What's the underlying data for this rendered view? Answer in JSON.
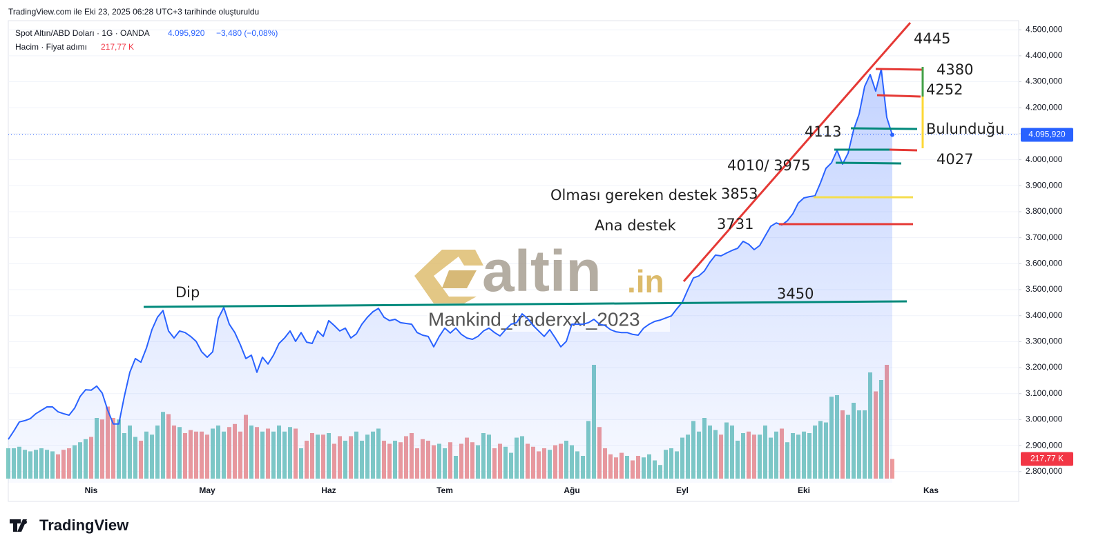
{
  "header": {
    "created": "TradingView.com ile Eki 23, 2025 06:28 UTC+3 tarihinde oluşturuldu"
  },
  "chart_data": {
    "type": "line",
    "categories": [
      null,
      null,
      null,
      null,
      null,
      null,
      null,
      null,
      null,
      null,
      null,
      null,
      null,
      null,
      null,
      "Nis",
      null,
      null,
      null,
      null,
      null,
      null,
      null,
      null,
      null,
      null,
      null,
      null,
      null,
      null,
      null,
      null,
      null,
      null,
      null,
      null,
      "May",
      null,
      null,
      null,
      null,
      null,
      null,
      null,
      null,
      null,
      null,
      null,
      null,
      null,
      null,
      null,
      null,
      null,
      null,
      null,
      null,
      null,
      "Haz",
      null,
      null,
      null,
      null,
      null,
      null,
      null,
      null,
      null,
      null,
      null,
      null,
      null,
      null,
      null,
      null,
      null,
      null,
      null,
      null,
      "Tem",
      null,
      null,
      null,
      null,
      null,
      null,
      null,
      null,
      null,
      null,
      null,
      null,
      null,
      null,
      null,
      null,
      null,
      null,
      null,
      null,
      null,
      null,
      "Ağu",
      null,
      null,
      null,
      null,
      null,
      null,
      null,
      null,
      null,
      null,
      null,
      null,
      null,
      null,
      null,
      null,
      null,
      null,
      null,
      "Eyl",
      null,
      null,
      null,
      null,
      null,
      null,
      null,
      null,
      null,
      null,
      null,
      null,
      null,
      null,
      null,
      null,
      null,
      null,
      null,
      null,
      null,
      "Eki",
      null,
      null,
      null,
      null,
      null,
      null,
      null,
      null,
      null,
      null,
      null,
      null,
      null,
      null,
      null,
      null,
      null,
      null,
      null,
      null,
      null,
      null,
      "Kas"
    ],
    "series": [
      {
        "name": "Spot Altın/ABD Doları · 1G · OANDA",
        "color": "#2962ff",
        "values": [
          2924,
          2956,
          2991,
          2996,
          3004,
          3023,
          3036,
          3049,
          3049,
          3030,
          3023,
          3017,
          3044,
          3089,
          3115,
          3113,
          3129,
          3102,
          3036,
          2983,
          2983,
          3089,
          3182,
          3235,
          3221,
          3275,
          3346,
          3394,
          3420,
          3341,
          3314,
          3341,
          3335,
          3320,
          3301,
          3261,
          3240,
          3261,
          3389,
          3431,
          3367,
          3335,
          3288,
          3235,
          3248,
          3182,
          3240,
          3214,
          3248,
          3293,
          3314,
          3341,
          3301,
          3335,
          3298,
          3293,
          3341,
          3320,
          3381,
          3362,
          3341,
          3352,
          3314,
          3330,
          3367,
          3394,
          3415,
          3428,
          3394,
          3381,
          3386,
          3373,
          3370,
          3367,
          3335,
          3325,
          3320,
          3280,
          3320,
          3352,
          3333,
          3352,
          3328,
          3314,
          3309,
          3320,
          3341,
          3352,
          3335,
          3322,
          3346,
          3367,
          3373,
          3407,
          3389,
          3362,
          3341,
          3320,
          3346,
          3314,
          3280,
          3301,
          3367,
          3367,
          3367,
          3373,
          3386,
          3367,
          3362,
          3346,
          3338,
          3335,
          3335,
          3328,
          3325,
          3352,
          3367,
          3378,
          3383,
          3391,
          3399,
          3426,
          3452,
          3500,
          3545,
          3553,
          3572,
          3606,
          3633,
          3630,
          3641,
          3651,
          3659,
          3686,
          3675,
          3654,
          3670,
          3707,
          3744,
          3757,
          3749,
          3765,
          3792,
          3834,
          3853,
          3858,
          3861,
          3911,
          3967,
          3988,
          4036,
          3983,
          4025,
          4115,
          4176,
          4282,
          4328,
          4264,
          4349,
          4163,
          4095.92,
          null,
          null,
          null,
          null,
          null,
          null,
          null
        ]
      }
    ],
    "volume": {
      "name": "Hacim · Fiyat adımı",
      "up_color": "#80cbc4",
      "down_color": "#ef9a9a",
      "last_label": "217,77 K",
      "values": [
        336,
        336,
        353,
        319,
        302,
        319,
        336,
        319,
        302,
        269,
        319,
        336,
        370,
        403,
        437,
        462,
        672,
        655,
        798,
        672,
        655,
        504,
        588,
        462,
        420,
        521,
        487,
        588,
        739,
        714,
        588,
        571,
        504,
        538,
        521,
        521,
        487,
        554,
        588,
        521,
        571,
        605,
        521,
        706,
        588,
        571,
        521,
        554,
        521,
        588,
        521,
        571,
        554,
        336,
        420,
        504,
        487,
        487,
        504,
        386,
        470,
        420,
        470,
        521,
        420,
        487,
        521,
        554,
        420,
        386,
        420,
        403,
        470,
        504,
        336,
        437,
        420,
        370,
        386,
        336,
        403,
        252,
        386,
        454,
        403,
        370,
        504,
        487,
        336,
        386,
        353,
        286,
        454,
        470,
        386,
        353,
        302,
        336,
        319,
        370,
        386,
        420,
        370,
        302,
        252,
        638,
        1260,
        571,
        336,
        269,
        235,
        286,
        252,
        202,
        252,
        235,
        269,
        202,
        151,
        319,
        336,
        302,
        454,
        487,
        638,
        521,
        672,
        588,
        538,
        487,
        622,
        588,
        420,
        504,
        521,
        487,
        487,
        588,
        454,
        521,
        554,
        403,
        504,
        487,
        521,
        504,
        588,
        638,
        622,
        907,
        924,
        756,
        706,
        840,
        756,
        756,
        1176,
        966,
        1092,
        1260,
        217.77,
        null,
        null,
        null,
        null,
        null,
        null,
        null
      ]
    },
    "last_price": 4095.92,
    "last_price_label": "4.095,920",
    "change_label": "−3,480 (−0,08%)",
    "ylim": [
      2757,
      4535
    ],
    "yticks": [
      {
        "value": 2800,
        "label": "2.800,000"
      },
      {
        "value": 2900,
        "label": "2.900,000"
      },
      {
        "value": 3000,
        "label": "3.000,000"
      },
      {
        "value": 3100,
        "label": "3.100,000"
      },
      {
        "value": 3200,
        "label": "3.200,000"
      },
      {
        "value": 3300,
        "label": "3.300,000"
      },
      {
        "value": 3400,
        "label": "3.400,000"
      },
      {
        "value": 3500,
        "label": "3.500,000"
      },
      {
        "value": 3600,
        "label": "3.600,000"
      },
      {
        "value": 3700,
        "label": "3.700,000"
      },
      {
        "value": 3800,
        "label": "3.800,000"
      },
      {
        "value": 3900,
        "label": "3.900,000"
      },
      {
        "value": 4000,
        "label": "4.000,000"
      },
      {
        "value": 4100,
        "label": "4.100,000"
      },
      {
        "value": 4200,
        "label": "4.200,000"
      },
      {
        "value": 4300,
        "label": "4.300,000"
      },
      {
        "value": 4400,
        "label": "4.400,000"
      },
      {
        "value": 4500,
        "label": "4.500,000"
      }
    ],
    "grid": true,
    "annotations": [
      "4445",
      "4380",
      "4252",
      "Bulunduğu",
      "4113",
      "4027",
      "4010/ 3975",
      "Olması gereken destek",
      "3853",
      "Ana destek",
      "3731",
      "Dip",
      "3450"
    ],
    "watermark": {
      "logo": "altin",
      "suffix": ".in",
      "author": "Mankind_traderxxl_2023"
    }
  },
  "footer": {
    "brand": "TradingView"
  }
}
